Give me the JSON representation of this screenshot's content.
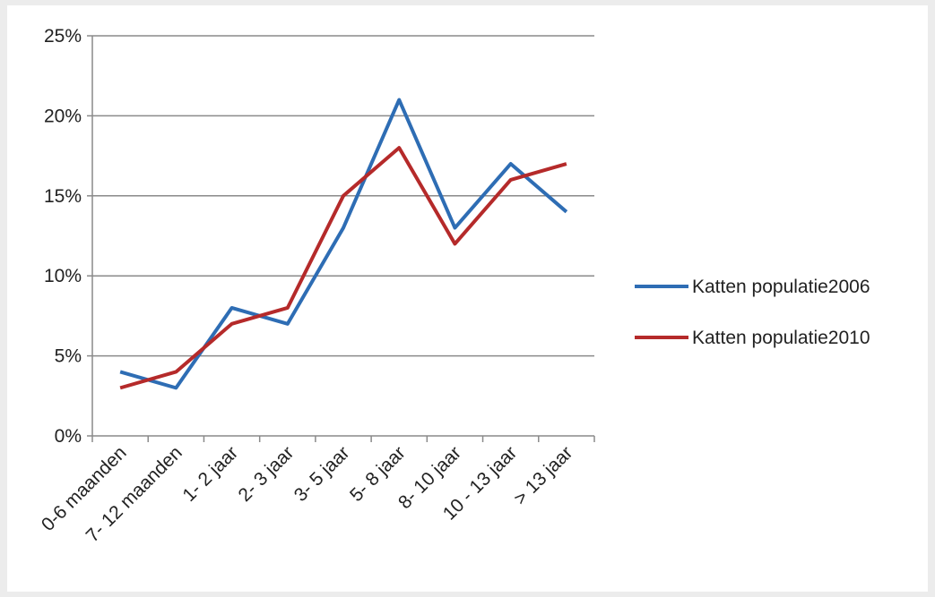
{
  "chart_data": {
    "type": "line",
    "categories": [
      "0-6 maanden",
      "7- 12 maanden",
      "1- 2 jaar",
      "2- 3 jaar",
      "3- 5 jaar",
      "5- 8 jaar",
      "8- 10 jaar",
      "10 - 13 jaar",
      "> 13 jaar"
    ],
    "series": [
      {
        "name": "Katten populatie2006",
        "color": "#2e6db4",
        "values": [
          4,
          3,
          8,
          7,
          13,
          21,
          13,
          17,
          14
        ]
      },
      {
        "name": "Katten populatie2010",
        "color": "#b52a2a",
        "values": [
          3,
          4,
          7,
          8,
          15,
          18,
          12,
          16,
          17
        ]
      }
    ],
    "yticks": [
      "0%",
      "5%",
      "10%",
      "15%",
      "20%",
      "25%"
    ],
    "ylim": [
      0,
      25
    ],
    "y_unit": "%",
    "grid": "horizontal",
    "legend": "right"
  }
}
